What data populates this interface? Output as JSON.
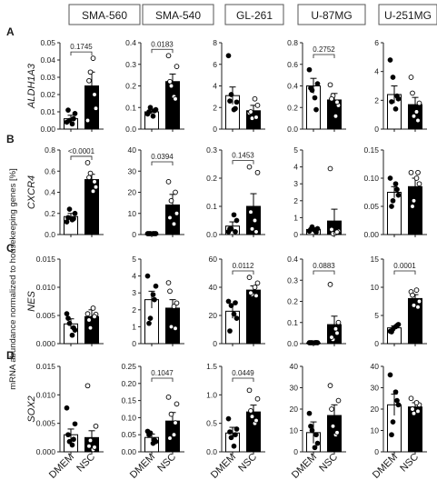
{
  "figure": {
    "y_axis_label": "mRNA abundance normalized to housekeeping genes [%]",
    "column_headers": [
      "SMA-560",
      "SMA-540",
      "GL-261",
      "U-87MG",
      "U-251MG"
    ],
    "row_letters": [
      "A",
      "B",
      "C",
      "D"
    ],
    "row_genes": [
      "ALDH1A3",
      "CXCR4",
      "NES",
      "SOX2"
    ],
    "x_categories": [
      "DMEM",
      "NSC"
    ],
    "colors": {
      "dmem_bar": "#ffffff",
      "nsc_bar": "#000000",
      "dmem_point": "#000000",
      "nsc_point": "#ffffff"
    }
  },
  "chart_data": [
    {
      "type": "bar",
      "row": "A",
      "cell_line": "SMA-560",
      "gene": "ALDH1A3",
      "categories": [
        "DMEM",
        "NSC"
      ],
      "values": [
        0.006,
        0.025
      ],
      "sem": [
        0.002,
        0.008
      ],
      "points": [
        [
          0.004,
          0.009,
          0.005,
          0.003,
          0.011,
          0.006
        ],
        [
          0.005,
          0.012,
          0.033,
          0.041,
          0.028,
          0.02
        ]
      ],
      "ylim": [
        0,
        0.05
      ],
      "ticks": [
        "0.00",
        "0.01",
        "0.02",
        "0.03",
        "0.04",
        "0.05"
      ],
      "tick_values": [
        0,
        0.01,
        0.02,
        0.03,
        0.04,
        0.05
      ],
      "p_value": "0.1745"
    },
    {
      "type": "bar",
      "row": "A",
      "cell_line": "SMA-540",
      "gene": "ALDH1A3",
      "categories": [
        "DMEM",
        "NSC"
      ],
      "values": [
        0.08,
        0.22
      ],
      "sem": [
        0.012,
        0.035
      ],
      "points": [
        [
          0.07,
          0.09,
          0.1,
          0.06,
          0.08,
          0.085
        ],
        [
          0.34,
          0.29,
          0.2,
          0.15,
          0.22,
          0.14
        ]
      ],
      "ylim": [
        0,
        0.4
      ],
      "ticks": [
        "0.0",
        "0.1",
        "0.2",
        "0.3",
        "0.4"
      ],
      "tick_values": [
        0,
        0.1,
        0.2,
        0.3,
        0.4
      ],
      "p_value": "0.0183"
    },
    {
      "type": "bar",
      "row": "A",
      "cell_line": "GL-261",
      "gene": "ALDH1A3",
      "categories": [
        "DMEM",
        "NSC"
      ],
      "values": [
        3.1,
        1.7
      ],
      "sem": [
        0.8,
        0.5
      ],
      "points": [
        [
          6.8,
          2.5,
          3.2,
          1.8,
          2.6,
          1.9
        ],
        [
          1.5,
          2.2,
          1.0,
          2.8,
          1.6,
          1.1
        ]
      ],
      "ylim": [
        0,
        8
      ],
      "ticks": [
        "0",
        "2",
        "4",
        "6",
        "8"
      ],
      "tick_values": [
        0,
        2,
        4,
        6,
        8
      ],
      "p_value": ""
    },
    {
      "type": "bar",
      "row": "A",
      "cell_line": "U-87MG",
      "gene": "ALDH1A3",
      "categories": [
        "DMEM",
        "NSC"
      ],
      "values": [
        0.4,
        0.27
      ],
      "sem": [
        0.07,
        0.06
      ],
      "points": [
        [
          0.55,
          0.42,
          0.36,
          0.29,
          0.38,
          0.18
        ],
        [
          0.41,
          0.22,
          0.31,
          0.12,
          0.28,
          0.25
        ]
      ],
      "ylim": [
        0,
        0.8
      ],
      "ticks": [
        "0.0",
        "0.2",
        "0.4",
        "0.6",
        "0.8"
      ],
      "tick_values": [
        0,
        0.2,
        0.4,
        0.6,
        0.8
      ],
      "p_value": "0.2752"
    },
    {
      "type": "bar",
      "row": "A",
      "cell_line": "U-251MG",
      "gene": "ALDH1A3",
      "categories": [
        "DMEM",
        "NSC"
      ],
      "values": [
        2.4,
        1.7
      ],
      "sem": [
        0.6,
        0.5
      ],
      "points": [
        [
          4.8,
          2.1,
          3.6,
          1.4,
          1.9,
          2.3
        ],
        [
          3.6,
          1.8,
          0.9,
          1.2,
          2.5,
          0.6
        ]
      ],
      "ylim": [
        0,
        6
      ],
      "ticks": [
        "0",
        "2",
        "4",
        "6"
      ],
      "tick_values": [
        0,
        2,
        4,
        6
      ],
      "p_value": ""
    },
    {
      "type": "bar",
      "row": "B",
      "cell_line": "SMA-560",
      "gene": "CXCR4",
      "categories": [
        "DMEM",
        "NSC"
      ],
      "values": [
        0.17,
        0.52
      ],
      "sem": [
        0.03,
        0.05
      ],
      "points": [
        [
          0.12,
          0.2,
          0.24,
          0.14,
          0.16,
          0.15
        ],
        [
          0.68,
          0.45,
          0.58,
          0.41,
          0.54,
          0.5
        ]
      ],
      "ylim": [
        0,
        0.8
      ],
      "ticks": [
        "0.0",
        "0.2",
        "0.4",
        "0.6",
        "0.8"
      ],
      "tick_values": [
        0,
        0.2,
        0.4,
        0.6,
        0.8
      ],
      "p_value": "<0.0001"
    },
    {
      "type": "bar",
      "row": "B",
      "cell_line": "SMA-540",
      "gene": "CXCR4",
      "categories": [
        "DMEM",
        "NSC"
      ],
      "values": [
        0.0,
        14
      ],
      "sem": [
        0.0,
        5
      ],
      "points": [
        [
          0,
          0,
          0,
          0,
          0,
          0
        ],
        [
          25,
          10,
          16,
          5,
          8,
          20
        ]
      ],
      "ylim": [
        0,
        40
      ],
      "ticks": [
        "0",
        "10",
        "20",
        "30",
        "40"
      ],
      "tick_values": [
        0,
        10,
        20,
        30,
        40
      ],
      "p_value": "0.0394"
    },
    {
      "type": "bar",
      "row": "B",
      "cell_line": "GL-261",
      "gene": "CXCR4",
      "categories": [
        "DMEM",
        "NSC"
      ],
      "values": [
        0.03,
        0.1
      ],
      "sem": [
        0.015,
        0.045
      ],
      "points": [
        [
          0.01,
          0.05,
          0.02,
          0.07,
          0.02,
          0.01
        ],
        [
          0.24,
          0.22,
          0.02,
          0.05,
          0.08,
          0.01
        ]
      ],
      "ylim": [
        0,
        0.3
      ],
      "ticks": [
        "0.0",
        "0.1",
        "0.2",
        "0.3"
      ],
      "tick_values": [
        0,
        0.1,
        0.2,
        0.3
      ],
      "p_value": "0.1453"
    },
    {
      "type": "bar",
      "row": "B",
      "cell_line": "U-87MG",
      "gene": "CXCR4",
      "categories": [
        "DMEM",
        "NSC"
      ],
      "values": [
        0.3,
        0.8
      ],
      "sem": [
        0.1,
        0.7
      ],
      "points": [
        [
          0.2,
          0.35,
          0.45,
          0.25,
          0.3,
          0.15
        ],
        [
          3.9,
          0.2,
          0.05,
          0.1,
          0.3,
          0.15
        ]
      ],
      "ylim": [
        0,
        5
      ],
      "ticks": [
        "0",
        "1",
        "2",
        "3",
        "4",
        "5"
      ],
      "tick_values": [
        0,
        1,
        2,
        3,
        4,
        5
      ],
      "p_value": ""
    },
    {
      "type": "bar",
      "row": "B",
      "cell_line": "U-251MG",
      "gene": "CXCR4",
      "categories": [
        "DMEM",
        "NSC"
      ],
      "values": [
        0.075,
        0.085
      ],
      "sem": [
        0.01,
        0.015
      ],
      "points": [
        [
          0.1,
          0.07,
          0.06,
          0.09,
          0.05,
          0.08
        ],
        [
          0.11,
          0.09,
          0.06,
          0.1,
          0.05,
          0.11
        ]
      ],
      "ylim": [
        0,
        0.15
      ],
      "ticks": [
        "0.00",
        "0.05",
        "0.10",
        "0.15"
      ],
      "tick_values": [
        0,
        0.05,
        0.1,
        0.15
      ],
      "p_value": ""
    },
    {
      "type": "bar",
      "row": "C",
      "cell_line": "SMA-560",
      "gene": "NES",
      "categories": [
        "DMEM",
        "NSC"
      ],
      "values": [
        0.0035,
        0.0048
      ],
      "sem": [
        0.0009,
        0.0012
      ],
      "points": [
        [
          0.0053,
          0.0024,
          0.0036,
          0.0015,
          0.0045,
          0.0028
        ],
        [
          0.0053,
          0.0052,
          0.0028,
          0.0063,
          0.0042,
          0.0048
        ]
      ],
      "ylim": [
        0,
        0.015
      ],
      "ticks": [
        "0.000",
        "0.005",
        "0.010",
        "0.015"
      ],
      "tick_values": [
        0,
        0.005,
        0.01,
        0.015
      ],
      "p_value": ""
    },
    {
      "type": "bar",
      "row": "C",
      "cell_line": "SMA-540",
      "gene": "NES",
      "categories": [
        "DMEM",
        "NSC"
      ],
      "values": [
        2.6,
        2.1
      ],
      "sem": [
        0.5,
        0.5
      ],
      "points": [
        [
          4.0,
          3.4,
          1.5,
          2.9,
          1.2,
          2.6
        ],
        [
          3.6,
          2.4,
          1.0,
          2.2,
          3.1,
          0.9
        ]
      ],
      "ylim": [
        0,
        5
      ],
      "ticks": [
        "0",
        "1",
        "2",
        "3",
        "4",
        "5"
      ],
      "tick_values": [
        0,
        1,
        2,
        3,
        4,
        5
      ],
      "p_value": ""
    },
    {
      "type": "bar",
      "row": "C",
      "cell_line": "GL-261",
      "gene": "NES",
      "categories": [
        "DMEM",
        "NSC"
      ],
      "values": [
        23,
        38
      ],
      "sem": [
        5,
        3
      ],
      "points": [
        [
          30,
          18,
          27,
          21,
          9,
          29
        ],
        [
          47,
          43,
          35,
          40,
          36,
          34
        ]
      ],
      "ylim": [
        0,
        60
      ],
      "ticks": [
        "0",
        "20",
        "40",
        "60"
      ],
      "tick_values": [
        0,
        20,
        40,
        60
      ],
      "p_value": "0.0112"
    },
    {
      "type": "bar",
      "row": "C",
      "cell_line": "U-87MG",
      "gene": "NES",
      "categories": [
        "DMEM",
        "NSC"
      ],
      "values": [
        0.003,
        0.09
      ],
      "sem": [
        0.001,
        0.04
      ],
      "points": [
        [
          0.002,
          0.003,
          0.004,
          0.001,
          0.003,
          0.005
        ],
        [
          0.28,
          0.1,
          0.02,
          0.07,
          0.03,
          0.05
        ]
      ],
      "ylim": [
        0,
        0.4
      ],
      "ticks": [
        "0.0",
        "0.1",
        "0.2",
        "0.3",
        "0.4"
      ],
      "tick_values": [
        0,
        0.1,
        0.2,
        0.3,
        0.4
      ],
      "p_value": "0.0883"
    },
    {
      "type": "bar",
      "row": "C",
      "cell_line": "U-251MG",
      "gene": "NES",
      "categories": [
        "DMEM",
        "NSC"
      ],
      "values": [
        2.8,
        8
      ],
      "sem": [
        0.35,
        0.7
      ],
      "points": [
        [
          2.2,
          3.4,
          2.6,
          3.0,
          2.1,
          3.2
        ],
        [
          9.2,
          7.5,
          6.8,
          9.5,
          8.6,
          6.5
        ]
      ],
      "ylim": [
        0,
        15
      ],
      "ticks": [
        "0",
        "5",
        "10",
        "15"
      ],
      "tick_values": [
        0,
        5,
        10,
        15
      ],
      "p_value": "0.0001"
    },
    {
      "type": "bar",
      "row": "D",
      "cell_line": "SMA-560",
      "gene": "SOX2",
      "categories": [
        "DMEM",
        "NSC"
      ],
      "values": [
        0.003,
        0.0025
      ],
      "sem": [
        0.001,
        0.0012
      ],
      "points": [
        [
          0.0077,
          0.0049,
          0.0018,
          0.0012,
          0.003,
          0.0022
        ],
        [
          0.0116,
          0.0045,
          0.002,
          0.0004,
          0.001,
          0.0008
        ]
      ],
      "ylim": [
        0,
        0.015
      ],
      "ticks": [
        "0.000",
        "0.005",
        "0.010",
        "0.015"
      ],
      "tick_values": [
        0,
        0.005,
        0.01,
        0.015
      ],
      "p_value": ""
    },
    {
      "type": "bar",
      "row": "D",
      "cell_line": "SMA-540",
      "gene": "SOX2",
      "categories": [
        "DMEM",
        "NSC"
      ],
      "values": [
        0.042,
        0.09
      ],
      "sem": [
        0.01,
        0.025
      ],
      "points": [
        [
          0.06,
          0.03,
          0.055,
          0.025,
          0.05,
          0.035
        ],
        [
          0.16,
          0.14,
          0.11,
          0.05,
          0.04,
          0.085
        ]
      ],
      "ylim": [
        0,
        0.25
      ],
      "ticks": [
        "0.00",
        "0.05",
        "0.10",
        "0.15",
        "0.20",
        "0.25"
      ],
      "tick_values": [
        0,
        0.05,
        0.1,
        0.15,
        0.2,
        0.25
      ],
      "p_value": "0.1047"
    },
    {
      "type": "bar",
      "row": "D",
      "cell_line": "GL-261",
      "gene": "SOX2",
      "categories": [
        "DMEM",
        "NSC"
      ],
      "values": [
        0.33,
        0.7
      ],
      "sem": [
        0.1,
        0.12
      ],
      "points": [
        [
          0.58,
          0.4,
          0.25,
          0.1,
          0.35,
          0.3
        ],
        [
          1.08,
          0.93,
          0.62,
          0.5,
          0.72,
          0.55
        ]
      ],
      "ylim": [
        0,
        1.5
      ],
      "ticks": [
        "0.0",
        "0.5",
        "1.0",
        "1.5"
      ],
      "tick_values": [
        0,
        0.5,
        1,
        1.5
      ],
      "p_value": "0.0449"
    },
    {
      "type": "bar",
      "row": "D",
      "cell_line": "U-87MG",
      "gene": "SOX2",
      "categories": [
        "DMEM",
        "NSC"
      ],
      "values": [
        9,
        17
      ],
      "sem": [
        5,
        5
      ],
      "points": [
        [
          18,
          4,
          10,
          2,
          12,
          8
        ],
        [
          31,
          24,
          12,
          8,
          20,
          9
        ]
      ],
      "ylim": [
        0,
        40
      ],
      "ticks": [
        "0",
        "10",
        "20",
        "30",
        "40"
      ],
      "tick_values": [
        0,
        10,
        20,
        30,
        40
      ],
      "p_value": ""
    },
    {
      "type": "bar",
      "row": "D",
      "cell_line": "U-251MG",
      "gene": "SOX2",
      "categories": [
        "DMEM",
        "NSC"
      ],
      "values": [
        22,
        21
      ],
      "sem": [
        5,
        2
      ],
      "points": [
        [
          36,
          22,
          14,
          28,
          8,
          24
        ],
        [
          25,
          22,
          18,
          23,
          20,
          19
        ]
      ],
      "ylim": [
        0,
        40
      ],
      "ticks": [
        "0",
        "10",
        "20",
        "30",
        "40"
      ],
      "tick_values": [
        0,
        10,
        20,
        30,
        40
      ],
      "p_value": ""
    }
  ]
}
